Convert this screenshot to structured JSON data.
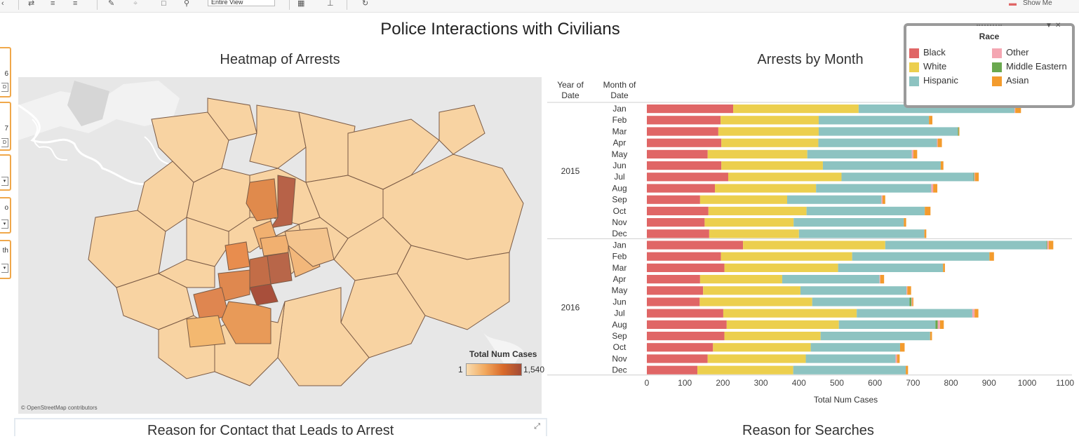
{
  "toolbar": {
    "view_select": "Entire View",
    "show_me": "Show Me"
  },
  "dashboard": {
    "title": "Police Interactions with Civilians",
    "map_title": "Heatmap of Arrests",
    "bar_title": "Arrests by Month",
    "bottom_left_title": "Reason for Contact that Leads to Arrest",
    "bottom_right_title": "Reason for Searches"
  },
  "filters": [
    {
      "text": "6",
      "control": "D"
    },
    {
      "text": "7",
      "control": "D"
    },
    {
      "text": "",
      "control": "▾"
    },
    {
      "text": "o",
      "control": "▾"
    },
    {
      "text": "th",
      "control": "▾"
    }
  ],
  "map": {
    "credit": "© OpenStreetMap contributors",
    "legend_title": "Total Num Cases",
    "legend_min": "1",
    "legend_max": "1,540"
  },
  "race_legend": {
    "title": "Race",
    "items": [
      {
        "name": "Black",
        "color": "#e06666"
      },
      {
        "name": "Other",
        "color": "#f4a6b2"
      },
      {
        "name": "White",
        "color": "#eccf4e"
      },
      {
        "name": "Middle Eastern",
        "color": "#6aa84f"
      },
      {
        "name": "Hispanic",
        "color": "#8dc3c1"
      },
      {
        "name": "Asian",
        "color": "#f39b2d"
      }
    ]
  },
  "chart_data": {
    "type": "bar",
    "orientation": "horizontal",
    "stacked": true,
    "title": "Arrests by Month",
    "xlabel": "Total Num Cases",
    "row_headers": [
      "Year of Date",
      "Month of Date"
    ],
    "xlim": [
      0,
      1120
    ],
    "xticks": [
      0,
      100,
      200,
      300,
      400,
      500,
      600,
      700,
      800,
      900,
      1000,
      1100
    ],
    "groups": [
      {
        "year": "2015",
        "months": [
          "Jan",
          "Feb",
          "Mar",
          "Apr",
          "May",
          "Jun",
          "Jul",
          "Aug",
          "Sep",
          "Oct",
          "Nov",
          "Dec"
        ]
      },
      {
        "year": "2016",
        "months": [
          "Jan",
          "Feb",
          "Mar",
          "Apr",
          "May",
          "Jun",
          "Jul",
          "Aug",
          "Sep",
          "Oct",
          "Nov",
          "Dec"
        ]
      }
    ],
    "series": [
      {
        "name": "Black",
        "color": "#e06666",
        "values": [
          227,
          194,
          188,
          196,
          160,
          196,
          214,
          179,
          140,
          162,
          152,
          164,
          253,
          195,
          204,
          140,
          148,
          139,
          201,
          210,
          204,
          174,
          160,
          133
        ]
      },
      {
        "name": "White",
        "color": "#eccf4e",
        "values": [
          330,
          258,
          264,
          255,
          262,
          267,
          298,
          266,
          229,
          258,
          234,
          236,
          374,
          345,
          299,
          216,
          256,
          296,
          351,
          295,
          253,
          257,
          258,
          252
        ]
      },
      {
        "name": "Hispanic",
        "color": "#8dc3c1",
        "values": [
          410,
          290,
          366,
          312,
          275,
          310,
          347,
          303,
          248,
          311,
          290,
          330,
          424,
          361,
          276,
          256,
          279,
          256,
          304,
          254,
          288,
          235,
          236,
          296
        ]
      },
      {
        "name": "Middle Eastern",
        "color": "#6aa84f",
        "values": [
          0,
          0,
          2,
          0,
          0,
          0,
          2,
          0,
          0,
          0,
          0,
          0,
          2,
          0,
          0,
          0,
          0,
          5,
          0,
          6,
          0,
          0,
          0,
          0
        ]
      },
      {
        "name": "Other",
        "color": "#f4a6b2",
        "values": [
          2,
          0,
          0,
          2,
          4,
          0,
          2,
          5,
          3,
          0,
          0,
          0,
          4,
          0,
          0,
          2,
          2,
          2,
          6,
          6,
          0,
          0,
          4,
          0
        ]
      },
      {
        "name": "Asian",
        "color": "#f39b2d",
        "values": [
          15,
          9,
          2,
          11,
          10,
          7,
          10,
          11,
          7,
          15,
          6,
          5,
          12,
          12,
          5,
          10,
          10,
          3,
          10,
          10,
          5,
          12,
          7,
          6
        ]
      }
    ]
  }
}
